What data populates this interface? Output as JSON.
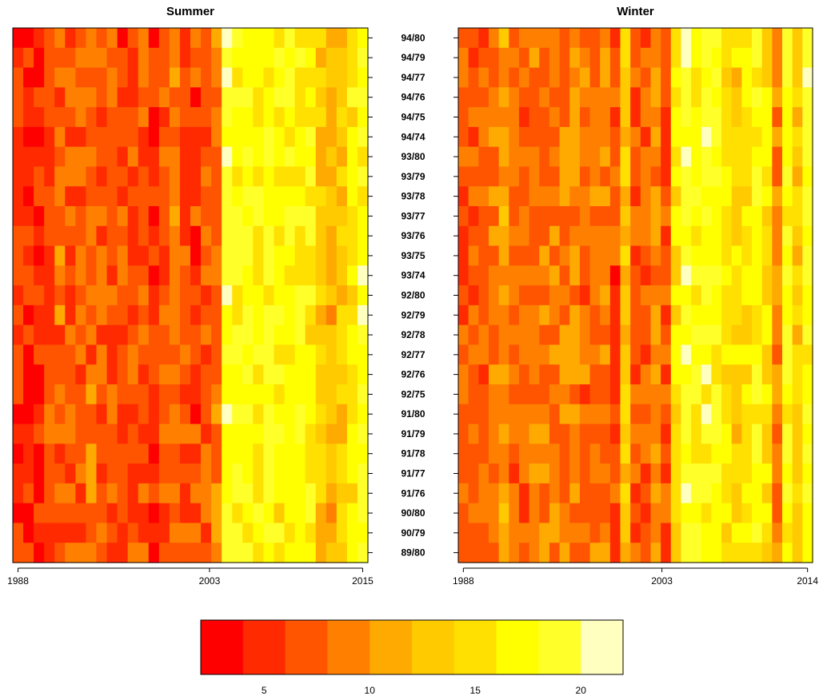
{
  "chart_data": [
    {
      "type": "heatmap",
      "title": "Summer",
      "row_labels": [
        "94/80",
        "94/79",
        "94/77",
        "94/76",
        "94/75",
        "94/74",
        "93/80",
        "93/79",
        "93/78",
        "93/77",
        "93/76",
        "93/75",
        "93/74",
        "92/80",
        "92/79",
        "92/78",
        "92/77",
        "92/76",
        "92/75",
        "91/80",
        "91/79",
        "91/78",
        "91/77",
        "91/76",
        "90/80",
        "90/79",
        "89/80"
      ],
      "x_ticks": [
        "1988",
        "2003",
        "2015"
      ],
      "x_range": [
        1988,
        2015
      ],
      "column_values": [
        5.5,
        5.4,
        5.0,
        6.5,
        7.5,
        7.0,
        6.0,
        6.5,
        6.5,
        7.0,
        7.5,
        6.0,
        5.0,
        5.0,
        6.5,
        7.5,
        5.5,
        6.0,
        6.5,
        7.5,
        19.0,
        18.0,
        17.5,
        17.0,
        18.5,
        16.0,
        17.5,
        16.5,
        16.0,
        13.0,
        11.5,
        12.5,
        15.5,
        18.0
      ],
      "column_count_note": "",
      "sample_values": [
        [
          4,
          5,
          4,
          6,
          5,
          7,
          8,
          9,
          6,
          7,
          8,
          5,
          4,
          5,
          8,
          9,
          8,
          10,
          9,
          9,
          19,
          19,
          18,
          17,
          17,
          18,
          18,
          19,
          16,
          17,
          15,
          10,
          17,
          18
        ],
        [
          6,
          6,
          5,
          8,
          8,
          7,
          8,
          9,
          9,
          8,
          9,
          6,
          5,
          6,
          8,
          7,
          7,
          9,
          9,
          9,
          18,
          19,
          18,
          18,
          16,
          19,
          19,
          18,
          17,
          16,
          17,
          9,
          18,
          18
        ],
        [
          6,
          5,
          5,
          6,
          9,
          8,
          9,
          10,
          10,
          9,
          9,
          7,
          6,
          6,
          7,
          8,
          8,
          9,
          9,
          8,
          18,
          18,
          18,
          18,
          19,
          18,
          19,
          19,
          17,
          17,
          17,
          10,
          18,
          19
        ]
      ]
    },
    {
      "type": "heatmap",
      "title": "Winter",
      "row_labels": [
        "94/80",
        "94/79",
        "94/77",
        "94/76",
        "94/75",
        "94/74",
        "93/80",
        "93/79",
        "93/78",
        "93/77",
        "93/76",
        "93/75",
        "93/74",
        "92/80",
        "92/79",
        "92/78",
        "92/77",
        "92/76",
        "92/75",
        "91/80",
        "91/79",
        "91/78",
        "91/77",
        "91/76",
        "90/80",
        "90/79",
        "89/80"
      ],
      "x_ticks": [
        "1988",
        "2003",
        "2014"
      ],
      "x_range": [
        1988,
        2014
      ]
    }
  ],
  "colorbar": {
    "colors": [
      "#FF0000",
      "#FF2A00",
      "#FF5500",
      "#FF8000",
      "#FFAA00",
      "#FFCA00",
      "#FFE000",
      "#FFFF00",
      "#FFFF2A",
      "#FFFFBF"
    ],
    "range": [
      2,
      22
    ],
    "ticks": [
      {
        "value": 5,
        "label": "5"
      },
      {
        "value": 10,
        "label": "10"
      },
      {
        "value": 15,
        "label": "15"
      },
      {
        "value": 20,
        "label": "20"
      }
    ]
  }
}
